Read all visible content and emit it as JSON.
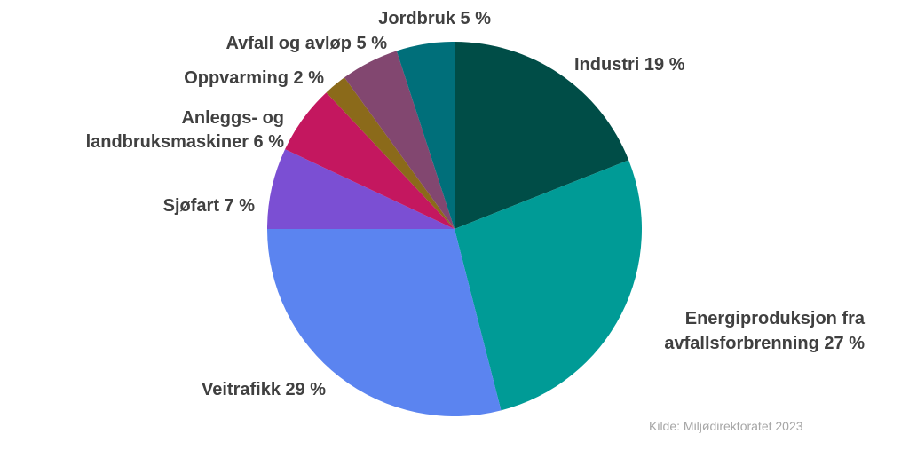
{
  "chart_data": {
    "type": "pie",
    "categories": [
      "Industri",
      "Energiproduksjon fra avfallsforbrenning",
      "Veitrafikk",
      "Sjøfart",
      "Anleggs- og landbruksmaskiner",
      "Oppvarming",
      "Avfall og avløp",
      "Jordbruk"
    ],
    "values": [
      19,
      27,
      29,
      7,
      6,
      2,
      5,
      5
    ],
    "labels": [
      [
        "Industri 19 %"
      ],
      [
        "Energiproduksjon fra",
        "avfallsforbrenning 27 %"
      ],
      [
        "Veitrafikk 29 %"
      ],
      [
        "Sjøfart 7 %"
      ],
      [
        "Anleggs- og",
        "landbruksmaskiner 6 %"
      ],
      [
        "Oppvarming 2 %"
      ],
      [
        "Avfall og avløp 5 %"
      ],
      [
        "Jordbruk 5 %"
      ]
    ],
    "colors": [
      "#004D47",
      "#009B96",
      "#5B84F0",
      "#7B4FD3",
      "#C4175F",
      "#8B6A1A",
      "#824770",
      "#006F7A"
    ],
    "start": "12 o'clock",
    "direction": "clockwise",
    "legend": "none"
  },
  "source": "Kilde: Miljødirektoratet 2023"
}
